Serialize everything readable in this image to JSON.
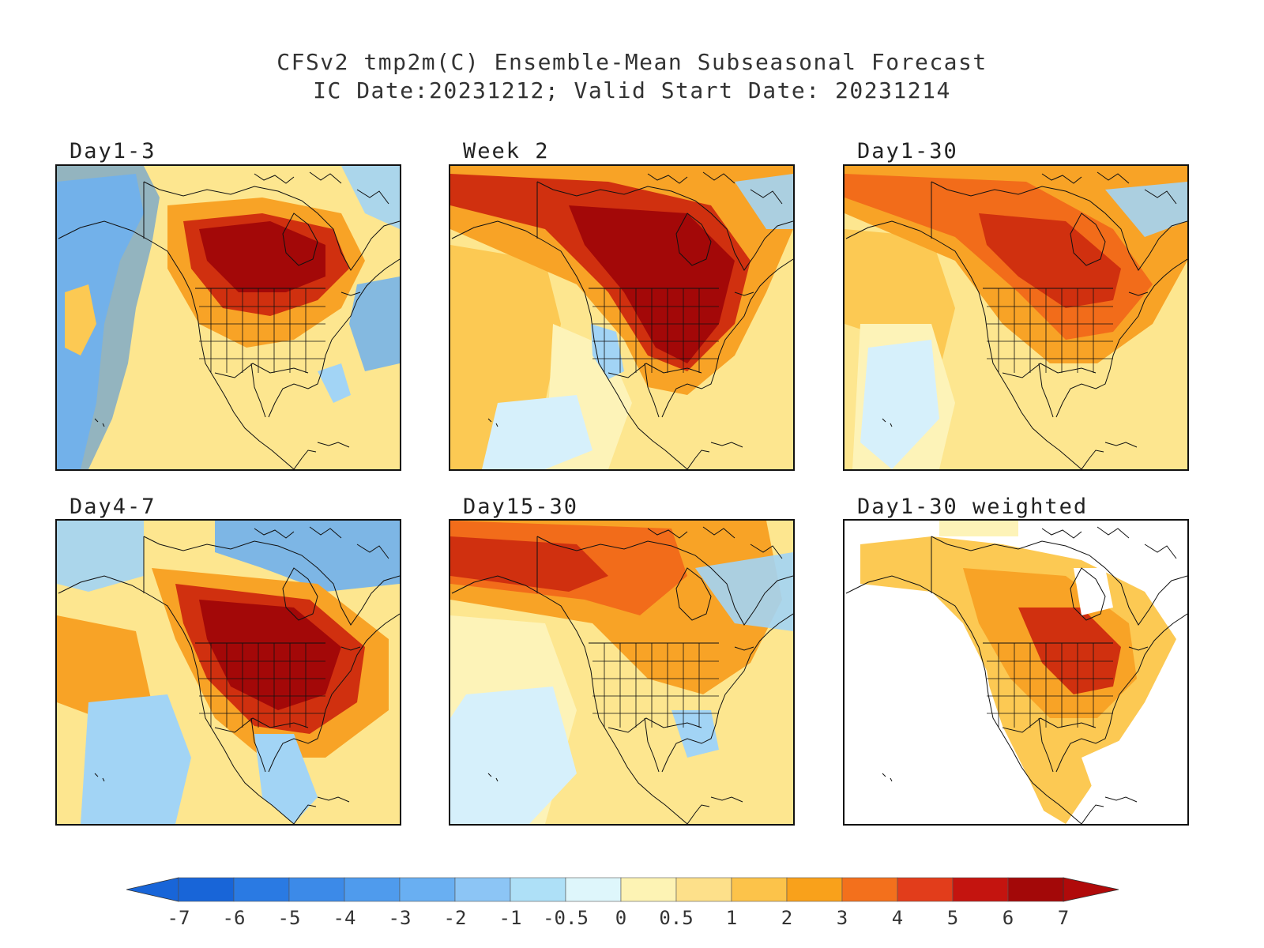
{
  "title": {
    "line1": "CFSv2 tmp2m(C) Ensemble-Mean Subseasonal Forecast",
    "line2": "IC Date:20231212; Valid Start Date: 20231214"
  },
  "panels": [
    {
      "label": "Day1-3",
      "pattern": "warm-canada-cold-alaska-pacific"
    },
    {
      "label": "Week 2",
      "pattern": "warm-central-north-america"
    },
    {
      "label": "Day1-30",
      "pattern": "warm-canada-great-lakes"
    },
    {
      "label": "Day4-7",
      "pattern": "warm-central-us-cold-arctic"
    },
    {
      "label": "Day15-30",
      "pattern": "warm-northwest-canada-alaska"
    },
    {
      "label": "Day1-30 weighted",
      "pattern": "masked-land-only"
    }
  ],
  "colorbar": {
    "labels": [
      "-7",
      "-6",
      "-5",
      "-4",
      "-3",
      "-2",
      "-1",
      "-0.5",
      "0",
      "0.5",
      "1",
      "2",
      "3",
      "4",
      "5",
      "6",
      "7"
    ],
    "colors": [
      "#1865d8",
      "#2a7ae3",
      "#3c8ae8",
      "#4f9bed",
      "#69aff2",
      "#8cc5f5",
      "#aee0f7",
      "#def6fb",
      "#fdf3b4",
      "#fde08a",
      "#fcc34a",
      "#f9a11b",
      "#f3701c",
      "#e23d1b",
      "#c4140f",
      "#a30808"
    ],
    "under_color": "#1865d8",
    "over_color": "#b00a0a"
  },
  "palette": {
    "deep_red": "#a30808",
    "red": "#d0300f",
    "orange_red": "#f26c1a",
    "orange": "#f8a326",
    "light_orange": "#fcc953",
    "yellow": "#fde68f",
    "pale_yellow": "#fdf3b8",
    "pale_blue": "#d6f0fb",
    "light_blue": "#a2d4f5",
    "blue": "#6fb0ee",
    "deep_blue": "#3d8be8"
  }
}
